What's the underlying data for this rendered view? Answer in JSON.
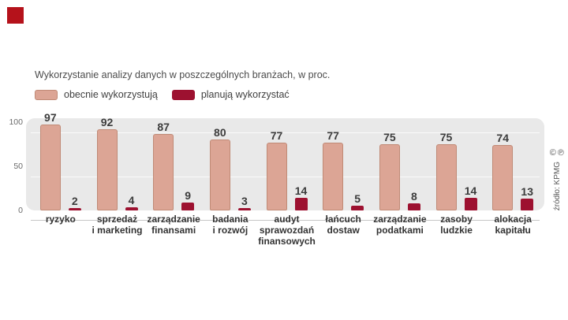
{
  "title": "Wykorzystanie  analizy danych w poszczególnych branżach, w  proc.",
  "legend": [
    {
      "label": "obecnie wykorzystują"
    },
    {
      "label": "planują wykorzystać"
    }
  ],
  "source": "źródło: KPMG",
  "copyright_icons": "©℗",
  "colors": {
    "current": "#dca595",
    "planned": "#9d1130",
    "logo": "#b5121b",
    "plot_bg": "#e9e9e9",
    "bar_border": "#c08a76"
  },
  "chart_data": {
    "type": "bar",
    "title": "Wykorzystanie analizy danych w poszczególnych branżach, w proc.",
    "categories": [
      "ryzyko",
      "sprzedaż\ni marketing",
      "zarządzanie\nfinansami",
      "badania\ni rozwój",
      "audyt\nsprawozdań\nfinansowych",
      "łańcuch\ndostaw",
      "zarządzanie\npodatkami",
      "zasoby\nludzkie",
      "alokacja\nkapitału"
    ],
    "series": [
      {
        "name": "obecnie wykorzystują",
        "values": [
          97,
          92,
          87,
          80,
          77,
          77,
          75,
          75,
          74
        ]
      },
      {
        "name": "planują wykorzystać",
        "values": [
          2,
          4,
          9,
          3,
          14,
          5,
          8,
          14,
          13
        ]
      }
    ],
    "ylim": [
      0,
      100
    ],
    "yticks": [
      0,
      50,
      100
    ],
    "xlabel": "",
    "ylabel": "",
    "legend_position": "top",
    "grid": false
  }
}
